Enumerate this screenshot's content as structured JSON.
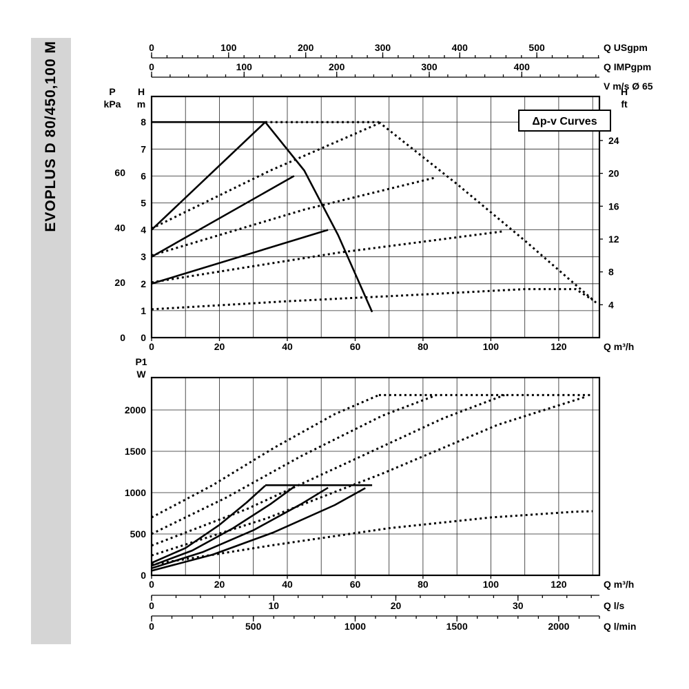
{
  "side_label": {
    "text": "EVOPLUS D 80/450,100 M"
  },
  "colors": {
    "sidebar_bg": "#d5d5d5",
    "ink": "#000000",
    "page_bg": "#ffffff"
  },
  "chart_data": [
    {
      "type": "line",
      "name": "head-flow-chart",
      "title": "Δp-v Curves",
      "x_max": 132,
      "x_minor": 10,
      "x_ticks": [
        0,
        20,
        40,
        60,
        80,
        100,
        120
      ],
      "x_unit": "Q m³/h",
      "y_max": 8.95,
      "y_grid": [
        1,
        2,
        3,
        4,
        5,
        6,
        7,
        8
      ],
      "y_left": [
        {
          "header": [
            "P",
            "kPa"
          ],
          "ticks": [
            0,
            20,
            40,
            60
          ],
          "m_per_unit": 0.102
        },
        {
          "header": [
            "H",
            "m"
          ],
          "ticks": [
            0,
            1,
            2,
            3,
            4,
            5,
            6,
            7,
            8
          ],
          "m_per_unit": 1
        }
      ],
      "y_right": {
        "header": [
          "H",
          "ft"
        ],
        "ticks": [
          4,
          8,
          12,
          16,
          20,
          24
        ],
        "m_per_unit": 0.3048
      },
      "aux_axes": [
        {
          "unit": "Q USgpm",
          "ticks": [
            0,
            100,
            200,
            300,
            400,
            500
          ],
          "minor_step": 20,
          "m3h_per_unit": 0.2271
        },
        {
          "unit": "Q IMPgpm",
          "ticks": [
            0,
            100,
            200,
            300,
            400
          ],
          "minor_step": 20,
          "m3h_per_unit": 0.2728
        }
      ],
      "corner_label": "V m/s Ø 65",
      "series": [
        {
          "name": "max-curve-single-flat",
          "style": "solid",
          "points": [
            [
              0,
              8
            ],
            [
              33.5,
              8
            ]
          ]
        },
        {
          "name": "max-curve-single-drop",
          "style": "solid",
          "points": [
            [
              33.5,
              8
            ],
            [
              45,
              6.2
            ],
            [
              55,
              3.8
            ],
            [
              65,
              0.95
            ]
          ]
        },
        {
          "name": "dpv-8m-single",
          "style": "solid",
          "points": [
            [
              0,
              4
            ],
            [
              33.5,
              8
            ]
          ]
        },
        {
          "name": "dpv-6m-single",
          "style": "solid",
          "points": [
            [
              0,
              3
            ],
            [
              42,
              6
            ]
          ]
        },
        {
          "name": "dpv-4m-single",
          "style": "solid",
          "points": [
            [
              0,
              2
            ],
            [
              52,
              4
            ]
          ]
        },
        {
          "name": "max-curve-twin-flat",
          "style": "dashed",
          "points": [
            [
              33.5,
              8
            ],
            [
              67,
              8
            ]
          ]
        },
        {
          "name": "max-curve-twin-drop",
          "style": "dashed",
          "points": [
            [
              67,
              8
            ],
            [
              90,
              5.7
            ],
            [
              110,
              3.6
            ],
            [
              131,
              1.3
            ]
          ]
        },
        {
          "name": "dpv-8m-twin",
          "style": "dashed",
          "points": [
            [
              0,
              4.05
            ],
            [
              35,
              6.2
            ],
            [
              67,
              7.95
            ]
          ]
        },
        {
          "name": "dpv-6m-twin",
          "style": "dashed",
          "points": [
            [
              0,
              3.05
            ],
            [
              45,
              4.75
            ],
            [
              84,
              5.95
            ]
          ]
        },
        {
          "name": "dpv-4m-twin",
          "style": "dashed",
          "points": [
            [
              0,
              2.05
            ],
            [
              55,
              3.15
            ],
            [
              104,
              3.95
            ]
          ]
        },
        {
          "name": "min-curve-twin",
          "style": "dashed",
          "points": [
            [
              0,
              1.05
            ],
            [
              40,
              1.35
            ],
            [
              80,
              1.6
            ],
            [
              110,
              1.8
            ],
            [
              125,
              1.8
            ],
            [
              130,
              1.4
            ]
          ]
        }
      ]
    },
    {
      "type": "line",
      "name": "power-flow-chart",
      "x_max": 132,
      "x_minor": 10,
      "x_ticks": [
        0,
        20,
        40,
        60,
        80,
        100,
        120
      ],
      "x_unit": "Q m³/h",
      "y_max": 2392,
      "y_grid": [
        500,
        1000,
        1500,
        2000
      ],
      "y_left": [
        {
          "header": [
            "P1",
            "W"
          ],
          "ticks": [
            0,
            500,
            1000,
            1500,
            2000
          ],
          "m_per_unit": 1
        }
      ],
      "aux_axes": [
        {
          "unit": "Q l/s",
          "ticks": [
            0,
            10,
            20,
            30
          ],
          "minor_step": 2,
          "m3h_per_unit": 3.6
        },
        {
          "unit": "Q l/min",
          "ticks": [
            0,
            500,
            1000,
            1500,
            2000
          ],
          "minor_step": 100,
          "m3h_per_unit": 0.06
        }
      ],
      "series": [
        {
          "name": "power-max-single-flat",
          "style": "solid",
          "points": [
            [
              33.5,
              1090
            ],
            [
              65,
              1090
            ]
          ]
        },
        {
          "name": "power-dpv-8-single",
          "style": "solid",
          "points": [
            [
              0,
              150
            ],
            [
              10,
              330
            ],
            [
              20,
              610
            ],
            [
              28,
              880
            ],
            [
              33.5,
              1085
            ]
          ]
        },
        {
          "name": "power-dpv-6-single",
          "style": "solid",
          "points": [
            [
              0,
              115
            ],
            [
              12,
              300
            ],
            [
              24,
              570
            ],
            [
              35,
              860
            ],
            [
              42,
              1070
            ]
          ]
        },
        {
          "name": "power-dpv-4-single",
          "style": "solid",
          "points": [
            [
              0,
              85
            ],
            [
              15,
              280
            ],
            [
              30,
              545
            ],
            [
              44,
              860
            ],
            [
              52,
              1060
            ]
          ]
        },
        {
          "name": "power-min-single",
          "style": "solid",
          "points": [
            [
              0,
              55
            ],
            [
              18,
              250
            ],
            [
              36,
              520
            ],
            [
              54,
              850
            ],
            [
              63,
              1055
            ]
          ]
        },
        {
          "name": "power-max-twin-flat",
          "style": "dashed",
          "points": [
            [
              67,
              2180
            ],
            [
              130,
              2180
            ]
          ]
        },
        {
          "name": "power-dpv-8-twin",
          "style": "dashed",
          "points": [
            [
              0,
              700
            ],
            [
              18,
              1090
            ],
            [
              36,
              1540
            ],
            [
              54,
              1950
            ],
            [
              67,
              2180
            ]
          ]
        },
        {
          "name": "power-dpv-6-twin",
          "style": "dashed",
          "points": [
            [
              0,
              500
            ],
            [
              22,
              940
            ],
            [
              44,
              1440
            ],
            [
              68,
              1930
            ],
            [
              84,
              2180
            ]
          ]
        },
        {
          "name": "power-dpv-4-twin",
          "style": "dashed",
          "points": [
            [
              0,
              360
            ],
            [
              28,
              800
            ],
            [
              56,
              1330
            ],
            [
              86,
              1900
            ],
            [
              104,
              2180
            ]
          ]
        },
        {
          "name": "power-min-twin-rise",
          "style": "dashed",
          "points": [
            [
              0,
              240
            ],
            [
              34,
              690
            ],
            [
              68,
              1230
            ],
            [
              102,
              1820
            ],
            [
              128,
              2160
            ]
          ]
        },
        {
          "name": "power-min-twin-low",
          "style": "dashed",
          "points": [
            [
              0,
              130
            ],
            [
              35,
              360
            ],
            [
              70,
              570
            ],
            [
              100,
              700
            ],
            [
              125,
              770
            ],
            [
              130,
              775
            ]
          ]
        }
      ]
    }
  ]
}
